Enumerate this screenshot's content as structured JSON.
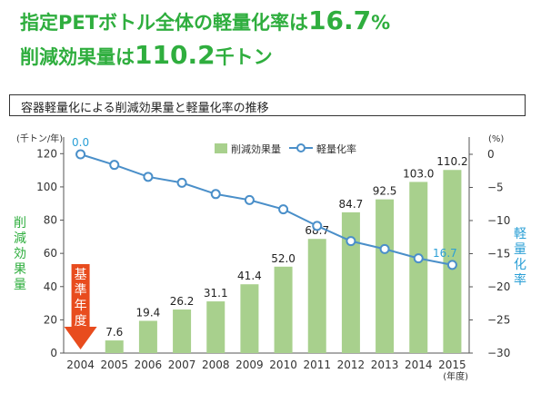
{
  "headline": {
    "line1_text": "指定PETボトル全体の軽量化率は",
    "line1_value": "16.7",
    "line1_unit": "%",
    "line2_text": "削減効果量は",
    "line2_value": "110.2",
    "line2_unit": "千トン"
  },
  "section_title": "容器軽量化による削減効果量と軽量化率の推移",
  "colors": {
    "green": "#2fae3e",
    "bar": "#a8d08d",
    "line": "#4a8fc9",
    "label_blue": "#2a9fd6",
    "arrow": "#e84c1e"
  },
  "chart_data": {
    "type": "bar",
    "categories": [
      "2004",
      "2005",
      "2006",
      "2007",
      "2008",
      "2009",
      "2010",
      "2011",
      "2012",
      "2013",
      "2014",
      "2015"
    ],
    "series": [
      {
        "name": "削減効果量",
        "type": "bar",
        "axis": "left",
        "values": [
          null,
          7.6,
          19.4,
          26.2,
          31.1,
          41.4,
          52.0,
          68.7,
          84.7,
          92.5,
          103.0,
          110.2
        ],
        "labels": [
          "",
          "7.6",
          "19.4",
          "26.2",
          "31.1",
          "41.4",
          "52.0",
          "68.7",
          "84.7",
          "92.5",
          "103.0",
          "110.2"
        ]
      },
      {
        "name": "軽量化率",
        "type": "line",
        "axis": "right",
        "values": [
          0.0,
          -1.6,
          -3.4,
          -4.3,
          -6.0,
          -6.9,
          -8.3,
          -10.8,
          -13.1,
          -14.3,
          -15.7,
          -16.7
        ],
        "labels": [
          "0.0",
          "",
          "",
          "",
          "",
          "",
          "",
          "",
          "",
          "",
          "",
          "16.7"
        ]
      }
    ],
    "y_left": {
      "unit": "(千トン/年)",
      "label": "削減効果量",
      "ylim": [
        0,
        130
      ],
      "ticks": [
        0,
        20,
        40,
        60,
        80,
        100,
        120
      ]
    },
    "y_right": {
      "unit": "(%)",
      "label": "軽量化率",
      "ylim": [
        -30,
        0
      ],
      "ticks": [
        0,
        -5,
        -10,
        -15,
        -20,
        -25,
        -30
      ]
    },
    "x_unit": "(年度)",
    "legend": [
      "削減効果量",
      "軽量化率"
    ],
    "legend_position": "top",
    "annotation": "基準年度",
    "grid": false
  }
}
